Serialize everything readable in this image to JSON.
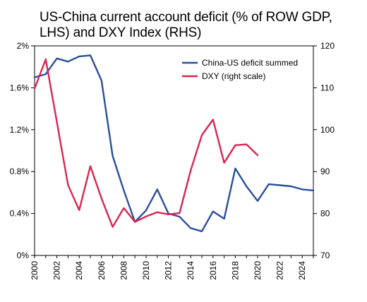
{
  "chart_data": {
    "type": "line",
    "title": "US-China current account deficit (% of ROW GDP, LHS) and DXY Index (RHS)",
    "x": [
      2000,
      2001,
      2002,
      2003,
      2004,
      2005,
      2006,
      2007,
      2008,
      2009,
      2010,
      2011,
      2012,
      2013,
      2014,
      2015,
      2016,
      2017,
      2018,
      2019,
      2020,
      2021,
      2022,
      2023,
      2024,
      2025
    ],
    "x_ticks": [
      "2000",
      "2002",
      "2004",
      "2006",
      "2008",
      "2010",
      "2012",
      "2014",
      "2016",
      "2018",
      "2020",
      "2022",
      "2024"
    ],
    "xlim": [
      2000,
      2025
    ],
    "y_left": {
      "ylim": [
        0,
        2
      ],
      "ticks": [
        "0%",
        "0.4%",
        "0.8%",
        "1.2%",
        "1.6%",
        "2%"
      ],
      "tick_values": [
        0,
        0.4,
        0.8,
        1.2,
        1.6,
        2.0
      ]
    },
    "y_right": {
      "ylim": [
        70,
        120
      ],
      "ticks": [
        "70",
        "80",
        "90",
        "100",
        "110",
        "120"
      ],
      "tick_values": [
        70,
        80,
        90,
        100,
        110,
        120
      ]
    },
    "series": [
      {
        "name": "China-US deficit summed",
        "color": "#2a4f9a",
        "axis": "left",
        "values": [
          1.7,
          1.73,
          1.88,
          1.85,
          1.9,
          1.91,
          1.67,
          0.95,
          0.62,
          0.32,
          0.43,
          0.63,
          0.4,
          0.37,
          0.26,
          0.23,
          0.42,
          0.35,
          0.83,
          0.66,
          0.52,
          0.68,
          0.67,
          0.66,
          0.63,
          0.62
        ]
      },
      {
        "name": "DXY (right scale)",
        "color": "#d9264f",
        "axis": "right",
        "values": [
          109.8,
          116.8,
          101.8,
          86.8,
          80.8,
          91.3,
          83.6,
          76.8,
          81.3,
          78.0,
          79.3,
          80.3,
          79.8,
          80.1,
          90.3,
          98.7,
          102.4,
          92.1,
          96.3,
          96.5,
          93.9,
          null,
          null,
          null,
          null,
          null
        ]
      }
    ],
    "legend": "top-right",
    "grid": false
  }
}
